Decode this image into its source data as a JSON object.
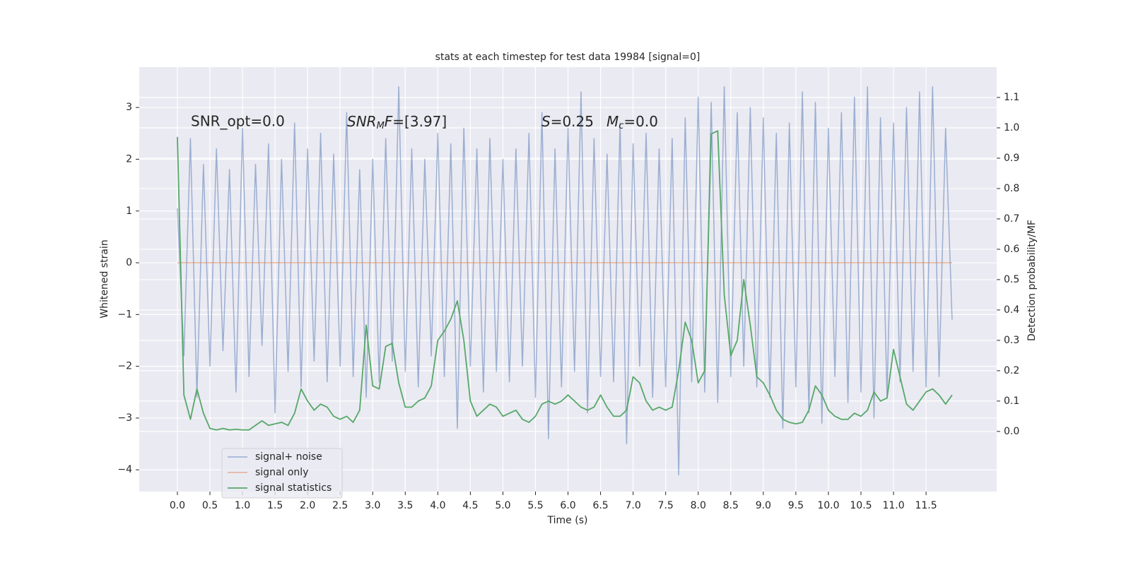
{
  "chart_data": {
    "type": "line",
    "title": "stats at each timestep for test data 19984 [signal=0]",
    "xlabel": "Time (s)",
    "ylabel": "Whitened strain",
    "y2label": "Detection probability/MF",
    "annotations": {
      "snr_opt": "SNR_opt=0.0",
      "snr_mf": [
        "SNR",
        "M",
        "F",
        "=[3.97]"
      ],
      "s": [
        "S",
        "=0.25"
      ],
      "mc": [
        "M",
        "c",
        "=0.0"
      ]
    },
    "xlim": [
      -0.586,
      12.585
    ],
    "ylim": [
      -4.42,
      3.78
    ],
    "y2lim": [
      -0.198,
      1.2
    ],
    "xticks": [
      {
        "value": 0,
        "label": "0.0"
      },
      {
        "value": 0.5,
        "label": "0.5"
      },
      {
        "value": 1,
        "label": "1.0"
      },
      {
        "value": 1.5,
        "label": "1.5"
      },
      {
        "value": 2,
        "label": "2.0"
      },
      {
        "value": 2.5,
        "label": "2.5"
      },
      {
        "value": 3,
        "label": "3.0"
      },
      {
        "value": 3.5,
        "label": "3.5"
      },
      {
        "value": 4,
        "label": "4.0"
      },
      {
        "value": 4.5,
        "label": "4.5"
      },
      {
        "value": 5,
        "label": "5.0"
      },
      {
        "value": 5.5,
        "label": "5.5"
      },
      {
        "value": 6,
        "label": "6.0"
      },
      {
        "value": 6.5,
        "label": "6.5"
      },
      {
        "value": 7,
        "label": "7.0"
      },
      {
        "value": 7.5,
        "label": "7.5"
      },
      {
        "value": 8,
        "label": "8.0"
      },
      {
        "value": 8.5,
        "label": "8.5"
      },
      {
        "value": 9,
        "label": "9.0"
      },
      {
        "value": 9.5,
        "label": "9.5"
      },
      {
        "value": 10,
        "label": "10.0"
      },
      {
        "value": 10.5,
        "label": "10.5"
      },
      {
        "value": 11,
        "label": "11.0"
      },
      {
        "value": 11.5,
        "label": "11.5"
      }
    ],
    "yticks": [
      {
        "value": -4,
        "label": "−4"
      },
      {
        "value": -3,
        "label": "−3"
      },
      {
        "value": -2,
        "label": "−2"
      },
      {
        "value": -1,
        "label": "−1"
      },
      0,
      1,
      2,
      3
    ],
    "y2ticks": [
      {
        "value": 0,
        "label": "0.0"
      },
      {
        "value": 0.1,
        "label": "0.1"
      },
      {
        "value": 0.2,
        "label": "0.2"
      },
      {
        "value": 0.3,
        "label": "0.3"
      },
      {
        "value": 0.4,
        "label": "0.4"
      },
      {
        "value": 0.5,
        "label": "0.5"
      },
      {
        "value": 0.6,
        "label": "0.6"
      },
      {
        "value": 0.7,
        "label": "0.7"
      },
      {
        "value": 0.8,
        "label": "0.8"
      },
      {
        "value": 0.9,
        "label": "0.9"
      },
      {
        "value": 1,
        "label": "1.0"
      },
      {
        "value": 1.1,
        "label": "1.1"
      }
    ],
    "grid": true,
    "legend": "lower left",
    "x": [
      0,
      0.1,
      0.2,
      0.3,
      0.4,
      0.5,
      0.6,
      0.7,
      0.8,
      0.9,
      1,
      1.1,
      1.2,
      1.3,
      1.4,
      1.5,
      1.6,
      1.7,
      1.8,
      1.9,
      2,
      2.1,
      2.2,
      2.3,
      2.4,
      2.5,
      2.6,
      2.7,
      2.8,
      2.9,
      3,
      3.1,
      3.2,
      3.3,
      3.4,
      3.5,
      3.6,
      3.7,
      3.8,
      3.9,
      4,
      4.1,
      4.2,
      4.3,
      4.4,
      4.5,
      4.6,
      4.7,
      4.8,
      4.9,
      5,
      5.1,
      5.2,
      5.3,
      5.4,
      5.5,
      5.6,
      5.7,
      5.8,
      5.9,
      6,
      6.1,
      6.2,
      6.3,
      6.4,
      6.5,
      6.6,
      6.7,
      6.8,
      6.9,
      7,
      7.1,
      7.2,
      7.3,
      7.4,
      7.5,
      7.6,
      7.7,
      7.8,
      7.9,
      8,
      8.1,
      8.2,
      8.3,
      8.4,
      8.5,
      8.6,
      8.7,
      8.8,
      8.9,
      9,
      9.1,
      9.2,
      9.3,
      9.4,
      9.5,
      9.6,
      9.7,
      9.8,
      9.9,
      10,
      10.1,
      10.2,
      10.3,
      10.4,
      10.5,
      10.6,
      10.7,
      10.8,
      10.9,
      11,
      11.1,
      11.2,
      11.3,
      11.4,
      11.5,
      11.6,
      11.7,
      11.8,
      11.9
    ],
    "series": [
      {
        "name": "signal+ noise",
        "color": "#4c72b0",
        "values": [
          1.05,
          -1.8,
          2.4,
          -2.6,
          1.9,
          -2.0,
          2.2,
          -1.7,
          1.8,
          -2.5,
          2.6,
          -2.2,
          1.9,
          -1.6,
          2.3,
          -2.9,
          2.0,
          -2.1,
          2.7,
          -2.4,
          2.2,
          -1.9,
          2.5,
          -2.3,
          2.1,
          -2.0,
          2.9,
          -2.2,
          1.8,
          -2.6,
          2.0,
          -2.3,
          2.4,
          -1.9,
          3.4,
          -2.1,
          2.2,
          -2.4,
          2.0,
          -1.8,
          2.5,
          -2.2,
          2.3,
          -3.2,
          2.6,
          -2.0,
          2.2,
          -2.5,
          2.4,
          -2.1,
          2.0,
          -2.3,
          2.2,
          -2.0,
          2.5,
          -2.6,
          2.9,
          -3.4,
          2.2,
          -2.4,
          2.6,
          -2.1,
          3.3,
          -2.9,
          2.4,
          -2.2,
          2.1,
          -2.3,
          2.7,
          -3.5,
          2.3,
          -2.0,
          2.5,
          -2.6,
          2.2,
          -2.4,
          2.4,
          -4.1,
          2.8,
          -2.3,
          3.2,
          -2.5,
          3.1,
          -2.7,
          3.4,
          -2.2,
          2.9,
          -2.0,
          3.0,
          -2.4,
          2.8,
          -2.6,
          2.5,
          -3.2,
          2.7,
          -2.4,
          3.3,
          -2.9,
          3.1,
          -3.1,
          2.6,
          -2.2,
          2.9,
          -2.7,
          3.2,
          -2.5,
          3.4,
          -3.0,
          2.8,
          -2.6,
          2.7,
          -2.3,
          3.0,
          -2.1,
          3.3,
          -2.4,
          3.4,
          -2.2,
          2.6,
          -1.1
        ]
      },
      {
        "name": "signal only",
        "color": "#dd8452",
        "values": [
          0,
          0,
          0,
          0,
          0,
          0,
          0,
          0,
          0,
          0,
          0,
          0,
          0,
          0,
          0,
          0,
          0,
          0,
          0,
          0,
          0,
          0,
          0,
          0,
          0,
          0,
          0,
          0,
          0,
          0,
          0,
          0,
          0,
          0,
          0,
          0,
          0,
          0,
          0,
          0,
          0,
          0,
          0,
          0,
          0,
          0,
          0,
          0,
          0,
          0,
          0,
          0,
          0,
          0,
          0,
          0,
          0,
          0,
          0,
          0,
          0,
          0,
          0,
          0,
          0,
          0,
          0,
          0,
          0,
          0,
          0,
          0,
          0,
          0,
          0,
          0,
          0,
          0,
          0,
          0,
          0,
          0,
          0,
          0,
          0,
          0,
          0,
          0,
          0,
          0,
          0,
          0,
          0,
          0,
          0,
          0,
          0,
          0,
          0,
          0,
          0,
          0,
          0,
          0,
          0,
          0,
          0,
          0,
          0,
          0,
          0,
          0,
          0,
          0,
          0,
          0,
          0,
          0,
          0,
          0
        ]
      },
      {
        "name": "signal statistics",
        "color": "#55a868",
        "axis": "y2",
        "values": [
          0.97,
          0.12,
          0.04,
          0.14,
          0.06,
          0.01,
          0.005,
          0.01,
          0.005,
          0.007,
          0.005,
          0.005,
          0.02,
          0.035,
          0.02,
          0.025,
          0.03,
          0.02,
          0.06,
          0.14,
          0.1,
          0.07,
          0.09,
          0.08,
          0.05,
          0.04,
          0.05,
          0.03,
          0.07,
          0.35,
          0.15,
          0.14,
          0.28,
          0.29,
          0.16,
          0.08,
          0.08,
          0.1,
          0.11,
          0.15,
          0.3,
          0.33,
          0.37,
          0.43,
          0.3,
          0.1,
          0.05,
          0.07,
          0.09,
          0.08,
          0.05,
          0.06,
          0.07,
          0.04,
          0.03,
          0.05,
          0.09,
          0.1,
          0.09,
          0.1,
          0.12,
          0.1,
          0.08,
          0.07,
          0.08,
          0.12,
          0.08,
          0.05,
          0.05,
          0.07,
          0.18,
          0.16,
          0.1,
          0.07,
          0.08,
          0.07,
          0.08,
          0.2,
          0.36,
          0.3,
          0.16,
          0.2,
          0.98,
          0.99,
          0.45,
          0.25,
          0.3,
          0.5,
          0.35,
          0.18,
          0.16,
          0.12,
          0.07,
          0.04,
          0.03,
          0.025,
          0.03,
          0.07,
          0.15,
          0.12,
          0.07,
          0.05,
          0.04,
          0.04,
          0.06,
          0.05,
          0.07,
          0.13,
          0.1,
          0.11,
          0.27,
          0.18,
          0.09,
          0.07,
          0.1,
          0.13,
          0.14,
          0.12,
          0.09,
          0.12
        ]
      }
    ]
  }
}
